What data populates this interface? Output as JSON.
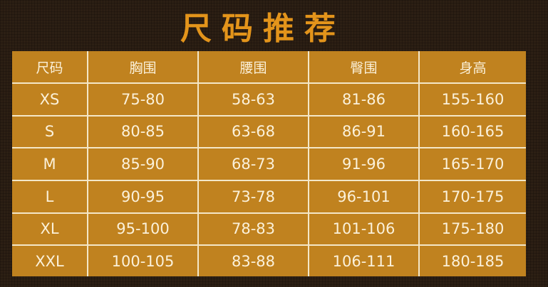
{
  "title": "尺码推荐",
  "colors": {
    "background": "#2c1f14",
    "table": "#c0821f",
    "title": "#e3941b",
    "text": "#fbf1da"
  },
  "table": {
    "headers": [
      "尺码",
      "胸围",
      "腰围",
      "臀围",
      "身高"
    ],
    "rows": [
      [
        "XS",
        "75-80",
        "58-63",
        "81-86",
        "155-160"
      ],
      [
        "S",
        "80-85",
        "63-68",
        "86-91",
        "160-165"
      ],
      [
        "M",
        "85-90",
        "68-73",
        "91-96",
        "165-170"
      ],
      [
        "L",
        "90-95",
        "73-78",
        "96-101",
        "170-175"
      ],
      [
        "XL",
        "95-100",
        "78-83",
        "101-106",
        "175-180"
      ],
      [
        "XXL",
        "100-105",
        "83-88",
        "106-111",
        "180-185"
      ]
    ]
  }
}
